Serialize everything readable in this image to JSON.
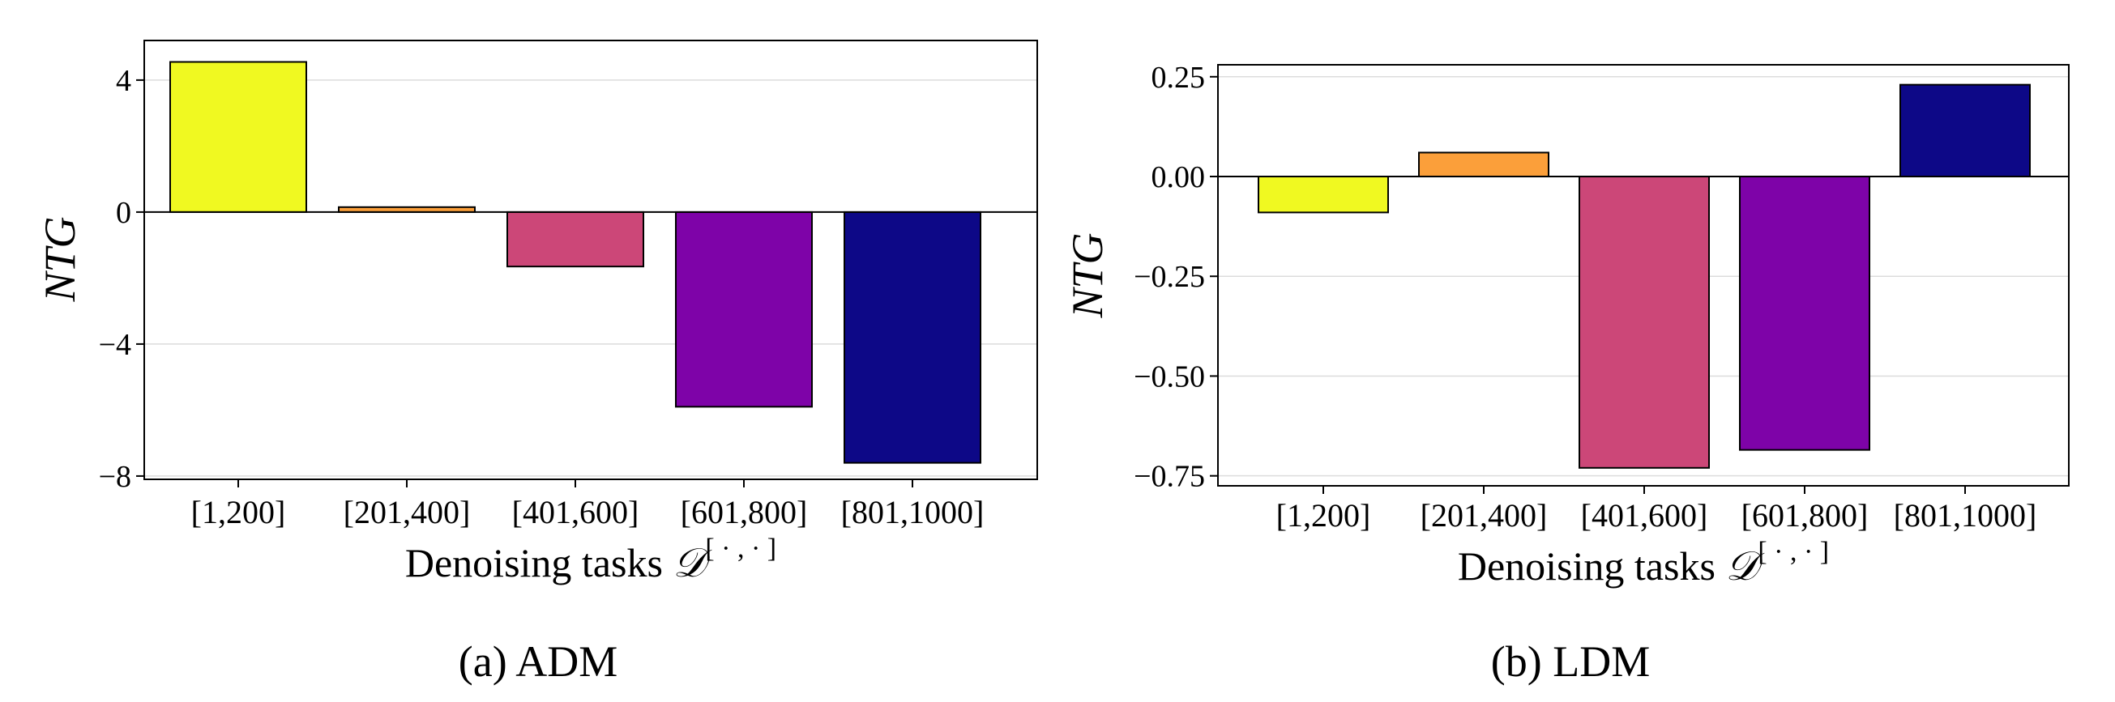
{
  "chart_data": [
    {
      "type": "bar",
      "caption": "(a) ADM",
      "xlabel": "Denoising tasks ",
      "xlabel_symbol": "𝒟",
      "xlabel_superscript": "[ · , · ]",
      "ylabel": "NTG",
      "categories": [
        "[1,200]",
        "[201,400]",
        "[401,600]",
        "[601,800]",
        "[801,1000]"
      ],
      "values": [
        4.55,
        0.15,
        -1.65,
        -5.9,
        -7.6
      ],
      "colors": [
        "#f0f921",
        "#fb9f3a",
        "#cc4778",
        "#7e03a8",
        "#0d0887"
      ],
      "yticks": [
        4,
        0,
        -4,
        -8
      ],
      "ytick_labels": [
        "4",
        "0",
        "−4",
        "−8"
      ],
      "ylim": [
        -8.1,
        5.2
      ],
      "grid": "y"
    },
    {
      "type": "bar",
      "caption": "(b) LDM",
      "xlabel": "Denoising tasks ",
      "xlabel_symbol": "𝒟",
      "xlabel_superscript": "[ · , · ]",
      "ylabel": "NTG",
      "categories": [
        "[1,200]",
        "[201,400]",
        "[401,600]",
        "[601,800]",
        "[801,1000]"
      ],
      "values": [
        -0.09,
        0.06,
        -0.73,
        -0.685,
        0.23
      ],
      "colors": [
        "#f0f921",
        "#fb9f3a",
        "#cc4778",
        "#7e03a8",
        "#0d0887"
      ],
      "yticks": [
        0.25,
        0.0,
        -0.25,
        -0.5,
        -0.75
      ],
      "ytick_labels": [
        "0.25",
        "0.00",
        "−0.25",
        "−0.50",
        "−0.75"
      ],
      "ylim": [
        -0.775,
        0.28
      ],
      "grid": "y"
    }
  ]
}
